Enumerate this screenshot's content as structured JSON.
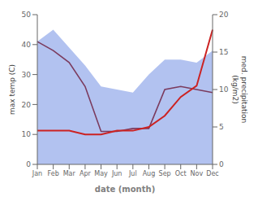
{
  "chart_data": {
    "type": "line",
    "xlabel": "date (month)",
    "ylabel": "max temp (C)",
    "y2label": "med. precipitation\n(kg/m2)",
    "categories": [
      "Jan",
      "Feb",
      "Mar",
      "Apr",
      "May",
      "Jun",
      "Jul",
      "Aug",
      "Sep",
      "Oct",
      "Nov",
      "Dec"
    ],
    "series": [
      {
        "type": "area",
        "color": "#AABBEE",
        "values": [
          41,
          45,
          39,
          33,
          26,
          25,
          24,
          30,
          35,
          35,
          34,
          38
        ]
      },
      {
        "type": "line",
        "color": "#7B3B5E",
        "values": [
          41,
          38,
          34,
          26,
          11,
          11,
          12,
          12,
          25,
          26,
          25,
          24
        ]
      },
      {
        "type": "line",
        "color": "#CC2222",
        "axis": "y2",
        "values": [
          4.5,
          4.5,
          4.5,
          4.0,
          4.0,
          4.5,
          4.5,
          5.0,
          6.5,
          9.0,
          10.5,
          18.0
        ]
      }
    ],
    "ylim": [
      0,
      50
    ],
    "yticks": [
      0,
      10,
      20,
      30,
      40,
      50
    ],
    "y2lim": [
      0,
      20
    ],
    "y2ticks": [
      0,
      5,
      10,
      15,
      20
    ],
    "grid": false
  }
}
